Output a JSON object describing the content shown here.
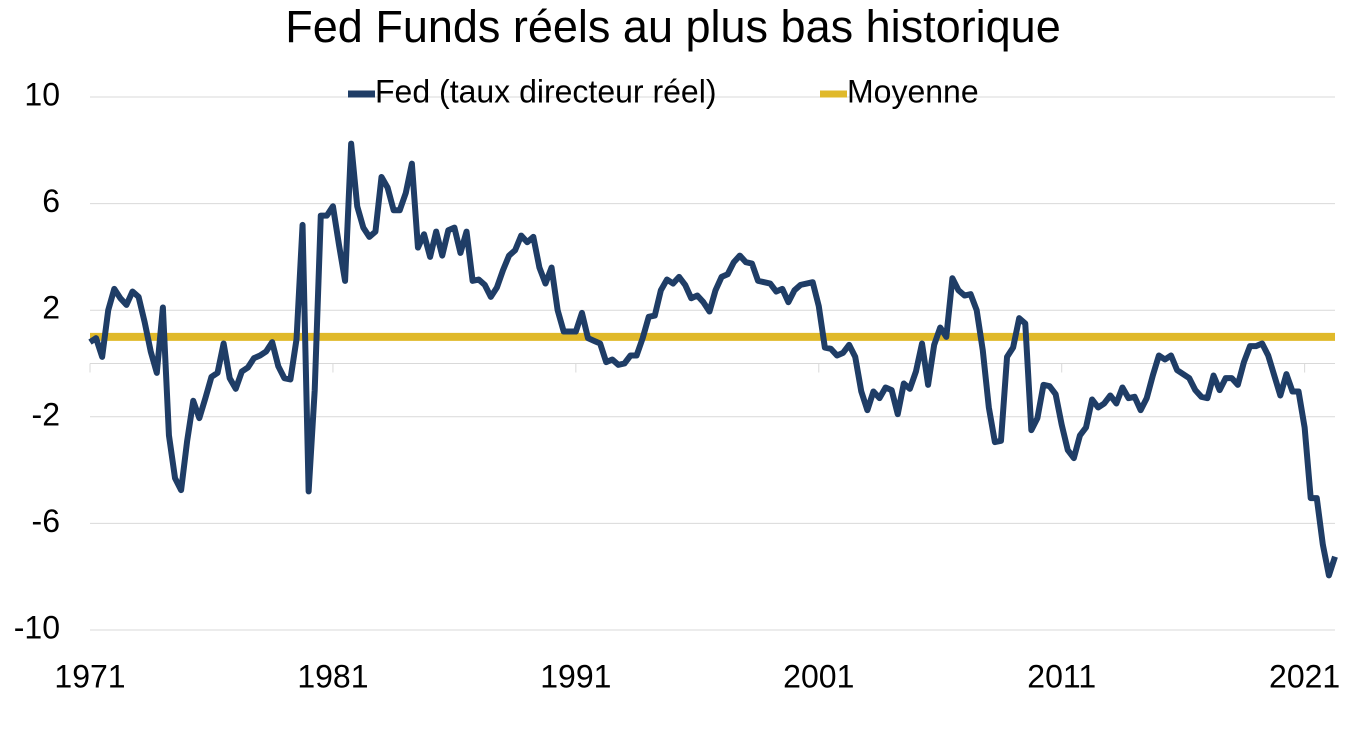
{
  "chart_data": {
    "type": "line",
    "title": "Fed Funds réels au plus bas historique",
    "legend": "top",
    "grid": true,
    "xlim": [
      1971,
      2022.25
    ],
    "xticks": [
      1971,
      1981,
      1991,
      2001,
      2011,
      2021
    ],
    "ylim": [
      -10,
      10
    ],
    "yticks": [
      -10,
      -6,
      -2,
      2,
      6,
      10
    ],
    "series": [
      {
        "name": "Fed (taux directeur réel)",
        "color": "#1f3d66",
        "x": [
          1971,
          1971.25,
          1971.5,
          1971.75,
          1972,
          1972.25,
          1972.5,
          1972.75,
          1973,
          1973.25,
          1973.5,
          1973.75,
          1974,
          1974.25,
          1974.5,
          1974.75,
          1975,
          1975.25,
          1975.5,
          1975.75,
          1976,
          1976.25,
          1976.5,
          1976.75,
          1977,
          1977.25,
          1977.5,
          1977.75,
          1978,
          1978.25,
          1978.5,
          1978.75,
          1979,
          1979.25,
          1979.5,
          1979.75,
          1980,
          1980.25,
          1980.5,
          1980.75,
          1981,
          1981.25,
          1981.5,
          1981.75,
          1982,
          1982.25,
          1982.5,
          1982.75,
          1983,
          1983.25,
          1983.5,
          1983.75,
          1984,
          1984.25,
          1984.5,
          1984.75,
          1985,
          1985.25,
          1985.5,
          1985.75,
          1986,
          1986.25,
          1986.5,
          1986.75,
          1987,
          1987.25,
          1987.5,
          1987.75,
          1988,
          1988.25,
          1988.5,
          1988.75,
          1989,
          1989.25,
          1989.5,
          1989.75,
          1990,
          1990.25,
          1990.5,
          1990.75,
          1991,
          1991.25,
          1991.5,
          1991.75,
          1992,
          1992.25,
          1992.5,
          1992.75,
          1993,
          1993.25,
          1993.5,
          1993.75,
          1994,
          1994.25,
          1994.5,
          1994.75,
          1995,
          1995.25,
          1995.5,
          1995.75,
          1996,
          1996.25,
          1996.5,
          1996.75,
          1997,
          1997.25,
          1997.5,
          1997.75,
          1998,
          1998.25,
          1998.5,
          1998.75,
          1999,
          1999.25,
          1999.5,
          1999.75,
          2000,
          2000.25,
          2000.5,
          2000.75,
          2001,
          2001.25,
          2001.5,
          2001.75,
          2002,
          2002.25,
          2002.5,
          2002.75,
          2003,
          2003.25,
          2003.5,
          2003.75,
          2004,
          2004.25,
          2004.5,
          2004.75,
          2005,
          2005.25,
          2005.5,
          2005.75,
          2006,
          2006.25,
          2006.5,
          2006.75,
          2007,
          2007.25,
          2007.5,
          2007.75,
          2008,
          2008.25,
          2008.5,
          2008.75,
          2009,
          2009.25,
          2009.5,
          2009.75,
          2010,
          2010.25,
          2010.5,
          2010.75,
          2011,
          2011.25,
          2011.5,
          2011.75,
          2012,
          2012.25,
          2012.5,
          2012.75,
          2013,
          2013.25,
          2013.5,
          2013.75,
          2014,
          2014.25,
          2014.5,
          2014.75,
          2015,
          2015.25,
          2015.5,
          2015.75,
          2016,
          2016.25,
          2016.5,
          2016.75,
          2017,
          2017.25,
          2017.5,
          2017.75,
          2018,
          2018.25,
          2018.5,
          2018.75,
          2019,
          2019.25,
          2019.5,
          2019.75,
          2020,
          2020.25,
          2020.5,
          2020.75,
          2021,
          2021.25,
          2021.5,
          2021.75,
          2022,
          2022.25
        ],
        "values": [
          0.8,
          0.95,
          0.25,
          2.0,
          2.8,
          2.45,
          2.2,
          2.7,
          2.5,
          1.55,
          0.45,
          -0.35,
          2.1,
          -2.7,
          -4.3,
          -4.75,
          -2.9,
          -1.4,
          -2.05,
          -1.3,
          -0.5,
          -0.35,
          0.75,
          -0.55,
          -0.95,
          -0.3,
          -0.15,
          0.2,
          0.3,
          0.45,
          0.8,
          -0.1,
          -0.55,
          -0.6,
          0.9,
          5.2,
          -4.8,
          -1.0,
          5.55,
          5.55,
          5.9,
          4.45,
          3.1,
          8.25,
          5.9,
          5.1,
          4.75,
          4.95,
          7.0,
          6.6,
          5.75,
          5.75,
          6.4,
          7.5,
          4.35,
          4.85,
          4.0,
          4.95,
          4.05,
          5.0,
          5.1,
          4.15,
          4.95,
          3.1,
          3.15,
          2.95,
          2.5,
          2.85,
          3.5,
          4.05,
          4.25,
          4.8,
          4.55,
          4.75,
          3.6,
          3.0,
          3.6,
          2.0,
          1.2,
          1.2,
          1.2,
          1.9,
          0.95,
          0.85,
          0.75,
          0.05,
          0.15,
          -0.05,
          0.0,
          0.3,
          0.3,
          0.95,
          1.75,
          1.8,
          2.75,
          3.15,
          3.0,
          3.25,
          2.95,
          2.45,
          2.55,
          2.3,
          1.95,
          2.75,
          3.25,
          3.35,
          3.8,
          4.05,
          3.8,
          3.75,
          3.1,
          3.05,
          3.0,
          2.7,
          2.8,
          2.3,
          2.75,
          2.95,
          3.0,
          3.05,
          2.15,
          0.6,
          0.55,
          0.3,
          0.4,
          0.7,
          0.25,
          -1.05,
          -1.75,
          -1.05,
          -1.3,
          -0.9,
          -1.0,
          -1.9,
          -0.75,
          -0.95,
          -0.3,
          0.75,
          -0.8,
          0.7,
          1.35,
          1.0,
          3.2,
          2.75,
          2.55,
          2.6,
          2.0,
          0.5,
          -1.65,
          -2.95,
          -2.9,
          0.25,
          0.6,
          1.7,
          1.5,
          -2.5,
          -2.05,
          -0.8,
          -0.85,
          -1.15,
          -2.3,
          -3.25,
          -3.55,
          -2.7,
          -2.4,
          -1.35,
          -1.65,
          -1.5,
          -1.2,
          -1.5,
          -0.9,
          -1.3,
          -1.25,
          -1.75,
          -1.3,
          -0.45,
          0.3,
          0.15,
          0.3,
          -0.25,
          -0.4,
          -0.55,
          -1.0,
          -1.25,
          -1.3,
          -0.45,
          -1.0,
          -0.55,
          -0.55,
          -0.8,
          0.05,
          0.65,
          0.65,
          0.75,
          0.3,
          -0.45,
          -1.2,
          -0.4,
          -1.05,
          -1.05,
          -2.4,
          -5.05,
          -5.05,
          -6.8,
          -7.95,
          -7.25
        ]
      },
      {
        "name": "Moyenne",
        "color": "#e0b92a",
        "x": [
          1971,
          2022.25
        ],
        "values": [
          1.0,
          1.0
        ]
      }
    ]
  }
}
